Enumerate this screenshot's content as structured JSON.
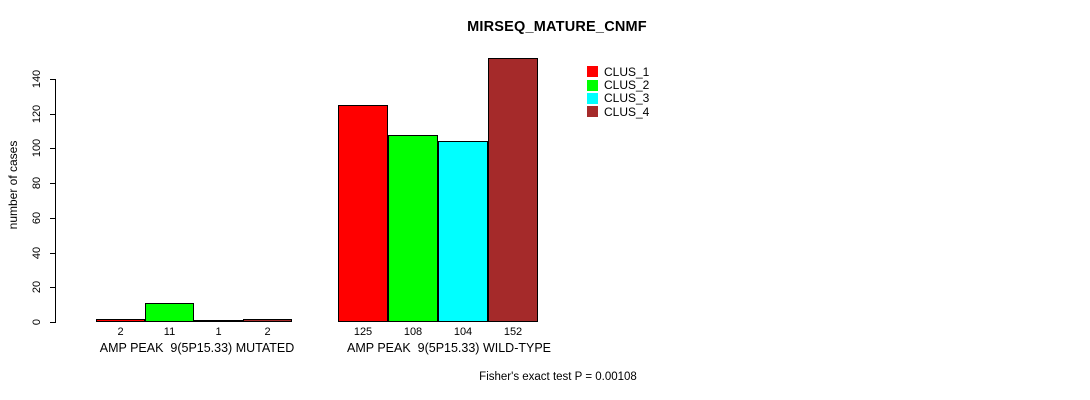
{
  "chart_data": {
    "type": "bar",
    "title": "MIRSEQ_MATURE_CNMF",
    "ylabel": "number of cases",
    "xlabel": "",
    "ylim": [
      0,
      140
    ],
    "yticks": [
      0,
      20,
      40,
      60,
      80,
      100,
      120,
      140
    ],
    "grid": false,
    "legend_position": "top-right",
    "bar_borders": true,
    "categories": [
      "AMP PEAK  9(5P15.33) MUTATED",
      "AMP PEAK  9(5P15.33) WILD-TYPE"
    ],
    "series": [
      {
        "name": "CLUS_1",
        "color": "#FF0000",
        "values": [
          2,
          125
        ]
      },
      {
        "name": "CLUS_2",
        "color": "#00FF00",
        "values": [
          11,
          108
        ]
      },
      {
        "name": "CLUS_3",
        "color": "#00FFFF",
        "values": [
          1,
          104
        ]
      },
      {
        "name": "CLUS_4",
        "color": "#A52A2A",
        "values": [
          2,
          152
        ]
      }
    ],
    "bar_value_labels": [
      [
        "2",
        "11",
        "1",
        "2"
      ],
      [
        "125",
        "108",
        "104",
        "152"
      ]
    ],
    "annotation": "Fisher's exact test P = 0.00108"
  },
  "colors": {
    "background": "#FFFFFF",
    "axis": "#000000",
    "text": "#000000"
  }
}
